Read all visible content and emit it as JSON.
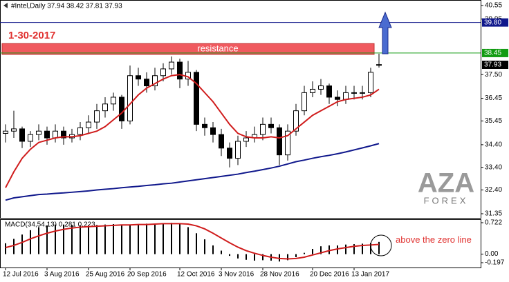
{
  "chart_data": [
    {
      "type": "candlestick",
      "title": "#Intel,Daily  37.94 38.42 37.81 37.93",
      "categories": [
        "12 Jul 2016",
        null,
        null,
        null,
        null,
        "3 Aug 2016",
        null,
        null,
        null,
        null,
        "25 Aug 2016",
        null,
        null,
        null,
        null,
        "20 Sep 2016",
        null,
        null,
        null,
        null,
        null,
        "12 Oct 2016",
        null,
        null,
        null,
        null,
        "3 Nov 2016",
        null,
        null,
        null,
        null,
        "28 Nov 2016",
        null,
        null,
        null,
        null,
        null,
        "20 Dec 2016",
        null,
        null,
        null,
        null,
        "13 Jan 2017",
        null,
        null,
        null
      ],
      "open": [
        34.9,
        35.0,
        35.1,
        34.55,
        34.85,
        35.0,
        34.7,
        35.0,
        34.7,
        34.85,
        35.15,
        35.4,
        35.9,
        36.2,
        36.5,
        35.45,
        37.45,
        37.3,
        37.0,
        37.45,
        37.75,
        38.05,
        37.3,
        37.6,
        35.3,
        35.15,
        34.85,
        34.25,
        33.8,
        34.55,
        34.7,
        34.85,
        35.3,
        35.15,
        33.95,
        35.0,
        35.9,
        36.7,
        36.85,
        37.0,
        36.5,
        36.4,
        36.7,
        36.7,
        36.7,
        37.94
      ],
      "high": [
        35.3,
        35.9,
        35.2,
        35.0,
        35.3,
        35.2,
        35.3,
        35.2,
        35.1,
        35.4,
        35.7,
        36.2,
        36.5,
        36.7,
        36.6,
        37.9,
        37.8,
        37.6,
        37.8,
        38.0,
        38.3,
        38.2,
        38.1,
        37.7,
        35.6,
        35.4,
        35.1,
        34.5,
        34.8,
        35.0,
        35.2,
        35.6,
        35.6,
        35.3,
        35.3,
        36.2,
        37.0,
        37.2,
        37.3,
        37.1,
        36.8,
        37.0,
        37.0,
        37.0,
        37.8,
        38.42
      ],
      "low": [
        34.5,
        34.7,
        34.25,
        34.3,
        34.6,
        34.4,
        34.5,
        34.4,
        34.5,
        34.6,
        34.9,
        35.1,
        35.6,
        35.9,
        35.1,
        35.3,
        37.0,
        36.7,
        36.8,
        37.2,
        37.5,
        36.9,
        37.0,
        35.0,
        34.8,
        34.5,
        33.9,
        33.4,
        33.5,
        34.3,
        34.5,
        34.6,
        34.9,
        33.5,
        33.7,
        34.8,
        35.7,
        36.5,
        36.6,
        36.2,
        36.1,
        36.2,
        36.4,
        36.4,
        36.5,
        37.81
      ],
      "close": [
        35.0,
        35.1,
        34.55,
        34.85,
        35.0,
        34.7,
        35.0,
        34.7,
        34.85,
        35.15,
        35.4,
        35.9,
        36.2,
        36.5,
        35.45,
        37.45,
        37.3,
        37.0,
        37.45,
        37.75,
        38.05,
        37.3,
        37.6,
        35.3,
        35.15,
        34.85,
        34.25,
        33.8,
        34.55,
        34.7,
        34.85,
        35.3,
        35.15,
        33.95,
        35.0,
        35.9,
        36.7,
        36.85,
        37.0,
        36.5,
        36.4,
        36.7,
        36.7,
        36.7,
        37.6,
        37.93
      ],
      "lines": [
        {
          "color": "#d01c1c",
          "values": [
            32.5,
            33.2,
            33.8,
            34.2,
            34.5,
            34.6,
            34.7,
            34.75,
            34.75,
            34.8,
            34.9,
            35.0,
            35.2,
            35.5,
            35.8,
            36.2,
            36.6,
            36.9,
            37.1,
            37.3,
            37.45,
            37.5,
            37.4,
            37.1,
            36.7,
            36.3,
            35.8,
            35.3,
            34.9,
            34.75,
            34.7,
            34.7,
            34.75,
            34.7,
            34.8,
            35.1,
            35.4,
            35.7,
            35.9,
            36.1,
            36.3,
            36.4,
            36.45,
            36.5,
            36.6,
            36.85
          ]
        },
        {
          "color": "#10188c",
          "values": [
            31.95,
            32.05,
            32.1,
            32.15,
            32.2,
            32.22,
            32.25,
            32.27,
            32.3,
            32.33,
            32.36,
            32.4,
            32.43,
            32.46,
            32.5,
            32.53,
            32.56,
            32.6,
            32.63,
            32.67,
            32.7,
            32.75,
            32.8,
            32.85,
            32.9,
            32.95,
            33.0,
            33.05,
            33.1,
            33.17,
            33.23,
            33.3,
            33.37,
            33.45,
            33.55,
            33.65,
            33.72,
            33.8,
            33.87,
            33.93,
            34.0,
            34.08,
            34.17,
            34.26,
            34.35,
            34.45
          ]
        }
      ],
      "levels": [
        {
          "value": 39.8,
          "label": "39.80",
          "color": "#10188c"
        },
        {
          "value": 38.45,
          "label": "38.45",
          "color": "#139c13"
        }
      ],
      "last_price": {
        "value": 37.93,
        "color": "#000000"
      },
      "resistance_zone": {
        "label": "resistance",
        "range": [
          38.39,
          38.87
        ],
        "color": "#f05a5f"
      },
      "annotation": "1-30-2017",
      "watermark": {
        "mark": "AZA",
        "name": "FOREX"
      },
      "ylim": [
        31.35,
        40.55
      ],
      "yticks": [
        40.55,
        39.95,
        {
          "value": 37.5,
          "label": "37.50"
        },
        36.45,
        35.45,
        {
          "value": 34.4,
          "label": "34.40"
        },
        {
          "value": 33.4,
          "label": "33.40"
        },
        {
          "value": 32.4,
          "label": "32.40"
        },
        31.35
      ]
    },
    {
      "type": "macd",
      "title": "MACD(34,54,13) 0.281 0.223",
      "color": "#000000",
      "values": [
        0.25,
        0.35,
        0.45,
        0.55,
        0.62,
        0.66,
        0.68,
        0.68,
        0.67,
        0.66,
        0.66,
        0.67,
        0.68,
        0.69,
        0.68,
        0.68,
        0.69,
        0.7,
        0.7,
        0.71,
        0.72,
        0.7,
        0.62,
        0.48,
        0.34,
        0.2,
        0.08,
        -0.04,
        -0.1,
        -0.13,
        -0.15,
        -0.14,
        -0.15,
        -0.17,
        -0.14,
        -0.07,
        0.03,
        0.12,
        0.18,
        0.2,
        0.2,
        0.22,
        0.23,
        0.24,
        0.26,
        0.281
      ],
      "signal": {
        "color": "#d01c1c",
        "values": [
          0.15,
          0.2,
          0.27,
          0.35,
          0.42,
          0.48,
          0.53,
          0.57,
          0.6,
          0.62,
          0.63,
          0.64,
          0.65,
          0.66,
          0.67,
          0.67,
          0.68,
          0.68,
          0.69,
          0.7,
          0.7,
          0.7,
          0.69,
          0.65,
          0.58,
          0.48,
          0.37,
          0.26,
          0.16,
          0.08,
          0.02,
          -0.03,
          -0.07,
          -0.1,
          -0.11,
          -0.1,
          -0.07,
          -0.02,
          0.03,
          0.08,
          0.12,
          0.15,
          0.18,
          0.2,
          0.21,
          0.223
        ]
      },
      "annotation": "above the zero line",
      "ylim": [
        -0.197,
        0.722
      ],
      "yticks": [
        0.722,
        {
          "value": 0,
          "label": "0.00"
        },
        -0.197
      ]
    }
  ]
}
